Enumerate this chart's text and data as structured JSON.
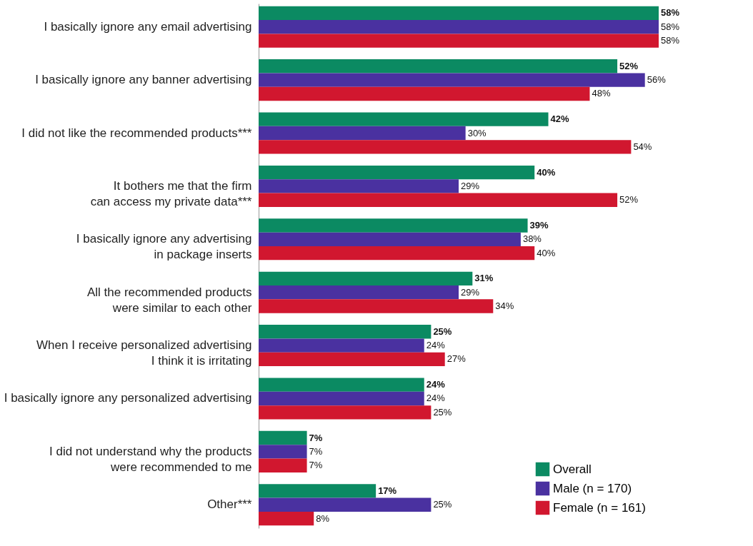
{
  "chart_data": {
    "type": "bar",
    "orientation": "horizontal",
    "legend": "bottom right",
    "categories": [
      "I basically ignore any email advertising",
      "I basically ignore any banner advertising",
      "I did not like the recommended products***",
      "It bothers me that the firm\ncan access my private data***",
      "I basically ignore any advertising\nin package inserts",
      "All the recommended products\nwere similar to each other",
      "When I receive personalized advertising\nI think it is irritating",
      "I basically ignore any personalized advertising",
      "I did not understand why the products\nwere recommended to me",
      "Other***"
    ],
    "series": [
      {
        "name": "Overall",
        "color": "#0b8a62",
        "values": [
          58,
          52,
          42,
          40,
          39,
          31,
          25,
          24,
          7,
          17
        ],
        "value_labels": [
          "58%",
          "52%",
          "42%",
          "40%",
          "39%",
          "31%",
          "25%",
          "24%",
          "7%",
          "17%"
        ]
      },
      {
        "name": "Male (n = 170)",
        "color": "#4a31a0",
        "values": [
          58,
          56,
          30,
          29,
          38,
          29,
          24,
          24,
          7,
          25
        ],
        "value_labels": [
          "58%",
          "56%",
          "30%",
          "29%",
          "38%",
          "29%",
          "24%",
          "24%",
          "7%",
          "25%"
        ]
      },
      {
        "name": "Female (n = 161)",
        "color": "#d1172f",
        "values": [
          58,
          48,
          54,
          52,
          40,
          34,
          27,
          25,
          7,
          8
        ],
        "value_labels": [
          "58%",
          "48%",
          "54%",
          "52%",
          "40%",
          "34%",
          "27%",
          "25%",
          "7%",
          "8%"
        ]
      }
    ]
  }
}
